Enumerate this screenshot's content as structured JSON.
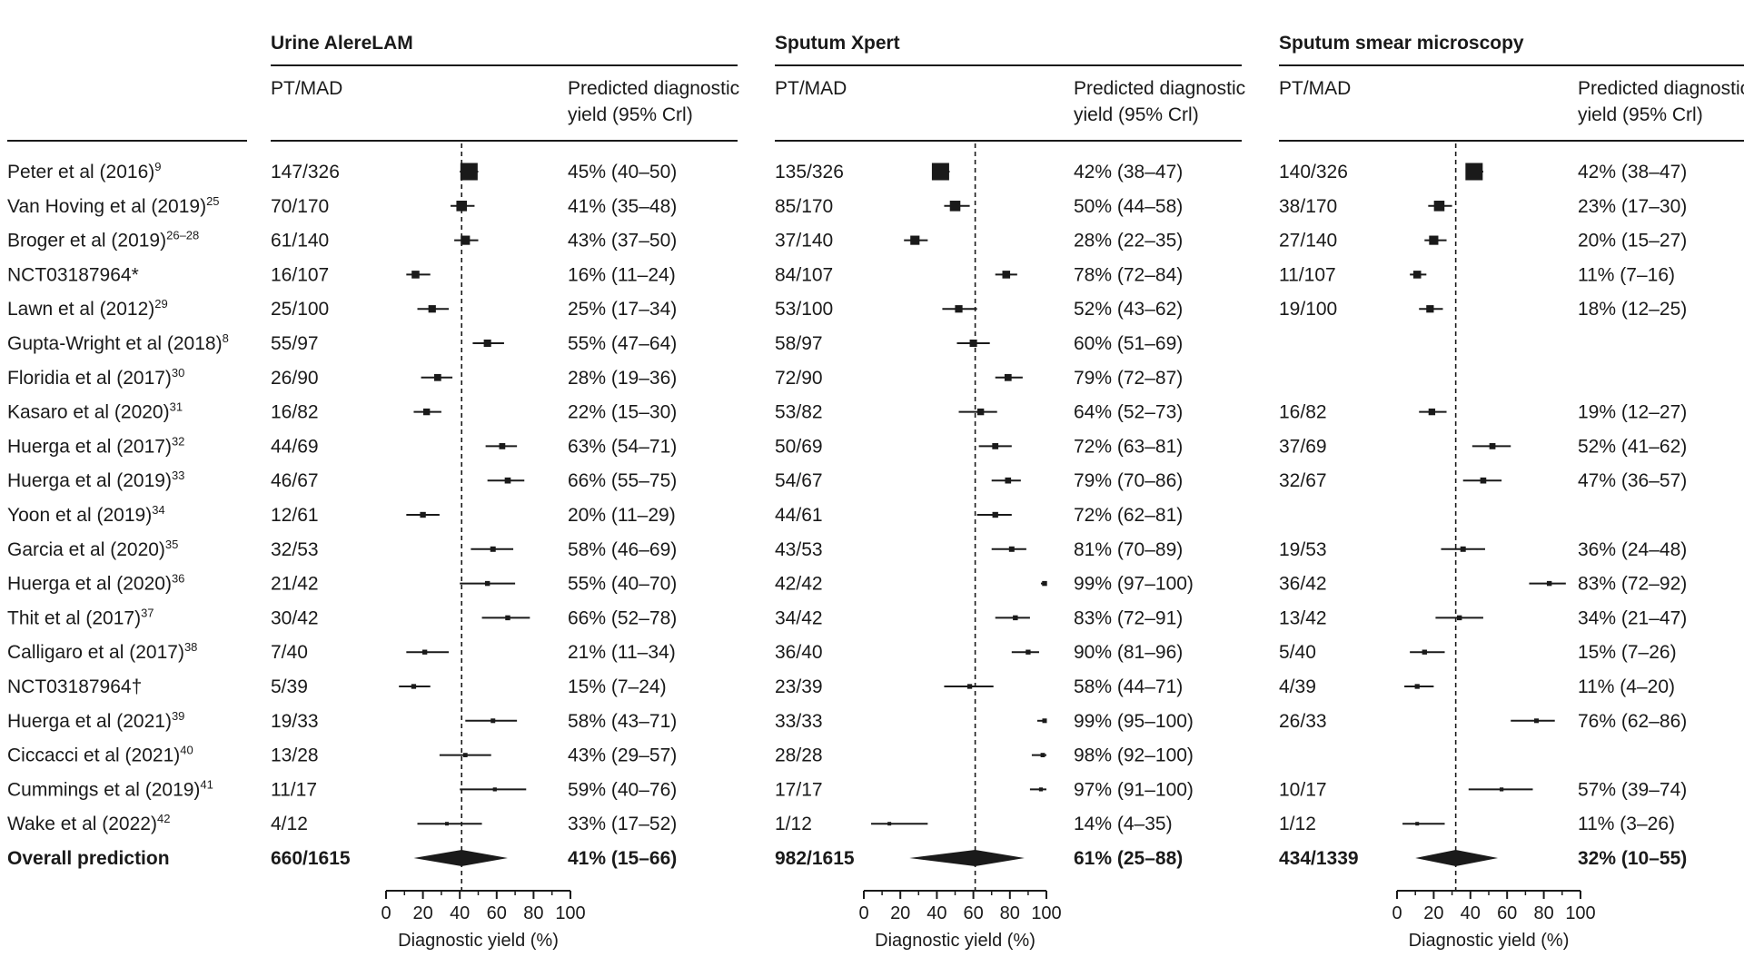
{
  "studies": [
    {
      "name": "Peter et al (2016)",
      "ref": "9"
    },
    {
      "name": "Van Hoving et al (2019)",
      "ref": "25"
    },
    {
      "name": "Broger et al (2019)",
      "ref": "26–28"
    },
    {
      "name": "NCT03187964*",
      "ref": ""
    },
    {
      "name": "Lawn et al (2012)",
      "ref": "29"
    },
    {
      "name": "Gupta-Wright et al (2018)",
      "ref": "8"
    },
    {
      "name": "Floridia et al (2017)",
      "ref": "30"
    },
    {
      "name": "Kasaro et al (2020)",
      "ref": "31"
    },
    {
      "name": "Huerga et al (2017)",
      "ref": "32"
    },
    {
      "name": "Huerga et al (2019)",
      "ref": "33"
    },
    {
      "name": "Yoon et al (2019)",
      "ref": "34"
    },
    {
      "name": "Garcia et al (2020)",
      "ref": "35"
    },
    {
      "name": "Huerga et al (2020)",
      "ref": "36"
    },
    {
      "name": "Thit et al (2017)",
      "ref": "37"
    },
    {
      "name": "Calligaro et al (2017)",
      "ref": "38"
    },
    {
      "name": "NCT03187964†",
      "ref": ""
    },
    {
      "name": "Huerga et al (2021)",
      "ref": "39"
    },
    {
      "name": "Ciccacci et al (2021)",
      "ref": "40"
    },
    {
      "name": "Cummings et al (2019)",
      "ref": "41"
    },
    {
      "name": "Wake et al (2022)",
      "ref": "42"
    }
  ],
  "overall_label": "Overall prediction",
  "chart_data": [
    {
      "type": "forest",
      "title": "Urine AlereLAM",
      "col_count_header": "PT/MAD",
      "col_yield_header_1": "Predicted diagnostic",
      "col_yield_header_2": "yield (95% Crl)",
      "xlabel": "Diagnostic yield (%)",
      "xlim": [
        0,
        100
      ],
      "ticks": [
        0,
        20,
        40,
        60,
        80,
        100
      ],
      "reference_line": 41,
      "rows": [
        {
          "count": "147/326",
          "yield": "45% (40–50)",
          "est": 45,
          "lo": 40,
          "hi": 50
        },
        {
          "count": "70/170",
          "yield": "41% (35–48)",
          "est": 41,
          "lo": 35,
          "hi": 48
        },
        {
          "count": "61/140",
          "yield": "43% (37–50)",
          "est": 43,
          "lo": 37,
          "hi": 50
        },
        {
          "count": "16/107",
          "yield": "16% (11–24)",
          "est": 16,
          "lo": 11,
          "hi": 24
        },
        {
          "count": "25/100",
          "yield": "25% (17–34)",
          "est": 25,
          "lo": 17,
          "hi": 34
        },
        {
          "count": "55/97",
          "yield": "55% (47–64)",
          "est": 55,
          "lo": 47,
          "hi": 64
        },
        {
          "count": "26/90",
          "yield": "28% (19–36)",
          "est": 28,
          "lo": 19,
          "hi": 36
        },
        {
          "count": "16/82",
          "yield": "22% (15–30)",
          "est": 22,
          "lo": 15,
          "hi": 30
        },
        {
          "count": "44/69",
          "yield": "63% (54–71)",
          "est": 63,
          "lo": 54,
          "hi": 71
        },
        {
          "count": "46/67",
          "yield": "66% (55–75)",
          "est": 66,
          "lo": 55,
          "hi": 75
        },
        {
          "count": "12/61",
          "yield": "20% (11–29)",
          "est": 20,
          "lo": 11,
          "hi": 29
        },
        {
          "count": "32/53",
          "yield": "58% (46–69)",
          "est": 58,
          "lo": 46,
          "hi": 69
        },
        {
          "count": "21/42",
          "yield": "55% (40–70)",
          "est": 55,
          "lo": 40,
          "hi": 70
        },
        {
          "count": "30/42",
          "yield": "66% (52–78)",
          "est": 66,
          "lo": 52,
          "hi": 78
        },
        {
          "count": "7/40",
          "yield": "21% (11–34)",
          "est": 21,
          "lo": 11,
          "hi": 34
        },
        {
          "count": "5/39",
          "yield": "15% (7–24)",
          "est": 15,
          "lo": 7,
          "hi": 24
        },
        {
          "count": "19/33",
          "yield": "58% (43–71)",
          "est": 58,
          "lo": 43,
          "hi": 71
        },
        {
          "count": "13/28",
          "yield": "43% (29–57)",
          "est": 43,
          "lo": 29,
          "hi": 57
        },
        {
          "count": "11/17",
          "yield": "59% (40–76)",
          "est": 59,
          "lo": 40,
          "hi": 76
        },
        {
          "count": "4/12",
          "yield": "33% (17–52)",
          "est": 33,
          "lo": 17,
          "hi": 52
        }
      ],
      "overall": {
        "count": "660/1615",
        "yield": "41% (15–66)",
        "est": 41,
        "lo": 15,
        "hi": 66
      }
    },
    {
      "type": "forest",
      "title": "Sputum Xpert",
      "col_count_header": "PT/MAD",
      "col_yield_header_1": "Predicted diagnostic",
      "col_yield_header_2": "yield (95% Crl)",
      "xlabel": "Diagnostic yield (%)",
      "xlim": [
        0,
        100
      ],
      "ticks": [
        0,
        20,
        40,
        60,
        80,
        100
      ],
      "reference_line": 61,
      "rows": [
        {
          "count": "135/326",
          "yield": "42% (38–47)",
          "est": 42,
          "lo": 38,
          "hi": 47
        },
        {
          "count": "85/170",
          "yield": "50% (44–58)",
          "est": 50,
          "lo": 44,
          "hi": 58
        },
        {
          "count": "37/140",
          "yield": "28% (22–35)",
          "est": 28,
          "lo": 22,
          "hi": 35
        },
        {
          "count": "84/107",
          "yield": "78% (72–84)",
          "est": 78,
          "lo": 72,
          "hi": 84
        },
        {
          "count": "53/100",
          "yield": "52% (43–62)",
          "est": 52,
          "lo": 43,
          "hi": 62
        },
        {
          "count": "58/97",
          "yield": "60% (51–69)",
          "est": 60,
          "lo": 51,
          "hi": 69
        },
        {
          "count": "72/90",
          "yield": "79% (72–87)",
          "est": 79,
          "lo": 72,
          "hi": 87
        },
        {
          "count": "53/82",
          "yield": "64% (52–73)",
          "est": 64,
          "lo": 52,
          "hi": 73
        },
        {
          "count": "50/69",
          "yield": "72% (63–81)",
          "est": 72,
          "lo": 63,
          "hi": 81
        },
        {
          "count": "54/67",
          "yield": "79% (70–86)",
          "est": 79,
          "lo": 70,
          "hi": 86
        },
        {
          "count": "44/61",
          "yield": "72% (62–81)",
          "est": 72,
          "lo": 62,
          "hi": 81
        },
        {
          "count": "43/53",
          "yield": "81% (70–89)",
          "est": 81,
          "lo": 70,
          "hi": 89
        },
        {
          "count": "42/42",
          "yield": "99% (97–100)",
          "est": 99,
          "lo": 97,
          "hi": 100
        },
        {
          "count": "34/42",
          "yield": "83% (72–91)",
          "est": 83,
          "lo": 72,
          "hi": 91
        },
        {
          "count": "36/40",
          "yield": "90% (81–96)",
          "est": 90,
          "lo": 81,
          "hi": 96
        },
        {
          "count": "23/39",
          "yield": "58% (44–71)",
          "est": 58,
          "lo": 44,
          "hi": 71
        },
        {
          "count": "33/33",
          "yield": "99% (95–100)",
          "est": 99,
          "lo": 95,
          "hi": 100
        },
        {
          "count": "28/28",
          "yield": "98% (92–100)",
          "est": 98,
          "lo": 92,
          "hi": 100
        },
        {
          "count": "17/17",
          "yield": "97% (91–100)",
          "est": 97,
          "lo": 91,
          "hi": 100
        },
        {
          "count": "1/12",
          "yield": "14% (4–35)",
          "est": 14,
          "lo": 4,
          "hi": 35
        }
      ],
      "overall": {
        "count": "982/1615",
        "yield": "61% (25–88)",
        "est": 61,
        "lo": 25,
        "hi": 88
      }
    },
    {
      "type": "forest",
      "title": "Sputum smear microscopy",
      "col_count_header": "PT/MAD",
      "col_yield_header_1": "Predicted diagnostic",
      "col_yield_header_2": "yield (95% Crl)",
      "xlabel": "Diagnostic yield (%)",
      "xlim": [
        0,
        100
      ],
      "ticks": [
        0,
        20,
        40,
        60,
        80,
        100
      ],
      "reference_line": 32,
      "rows": [
        {
          "count": "140/326",
          "yield": "42% (38–47)",
          "est": 42,
          "lo": 38,
          "hi": 47
        },
        {
          "count": "38/170",
          "yield": "23% (17–30)",
          "est": 23,
          "lo": 17,
          "hi": 30
        },
        {
          "count": "27/140",
          "yield": "20% (15–27)",
          "est": 20,
          "lo": 15,
          "hi": 27
        },
        {
          "count": "11/107",
          "yield": "11% (7–16)",
          "est": 11,
          "lo": 7,
          "hi": 16
        },
        {
          "count": "19/100",
          "yield": "18% (12–25)",
          "est": 18,
          "lo": 12,
          "hi": 25
        },
        null,
        null,
        {
          "count": "16/82",
          "yield": "19% (12–27)",
          "est": 19,
          "lo": 12,
          "hi": 27
        },
        {
          "count": "37/69",
          "yield": "52% (41–62)",
          "est": 52,
          "lo": 41,
          "hi": 62
        },
        {
          "count": "32/67",
          "yield": "47% (36–57)",
          "est": 47,
          "lo": 36,
          "hi": 57
        },
        null,
        {
          "count": "19/53",
          "yield": "36% (24–48)",
          "est": 36,
          "lo": 24,
          "hi": 48
        },
        {
          "count": "36/42",
          "yield": "83% (72–92)",
          "est": 83,
          "lo": 72,
          "hi": 92
        },
        {
          "count": "13/42",
          "yield": "34% (21–47)",
          "est": 34,
          "lo": 21,
          "hi": 47
        },
        {
          "count": "5/40",
          "yield": "15% (7–26)",
          "est": 15,
          "lo": 7,
          "hi": 26
        },
        {
          "count": "4/39",
          "yield": "11% (4–20)",
          "est": 11,
          "lo": 4,
          "hi": 20
        },
        {
          "count": "26/33",
          "yield": "76% (62–86)",
          "est": 76,
          "lo": 62,
          "hi": 86
        },
        null,
        {
          "count": "10/17",
          "yield": "57% (39–74)",
          "est": 57,
          "lo": 39,
          "hi": 74
        },
        {
          "count": "1/12",
          "yield": "11% (3–26)",
          "est": 11,
          "lo": 3,
          "hi": 26
        }
      ],
      "overall": {
        "count": "434/1339",
        "yield": "32% (10–55)",
        "est": 32,
        "lo": 10,
        "hi": 55
      }
    }
  ]
}
